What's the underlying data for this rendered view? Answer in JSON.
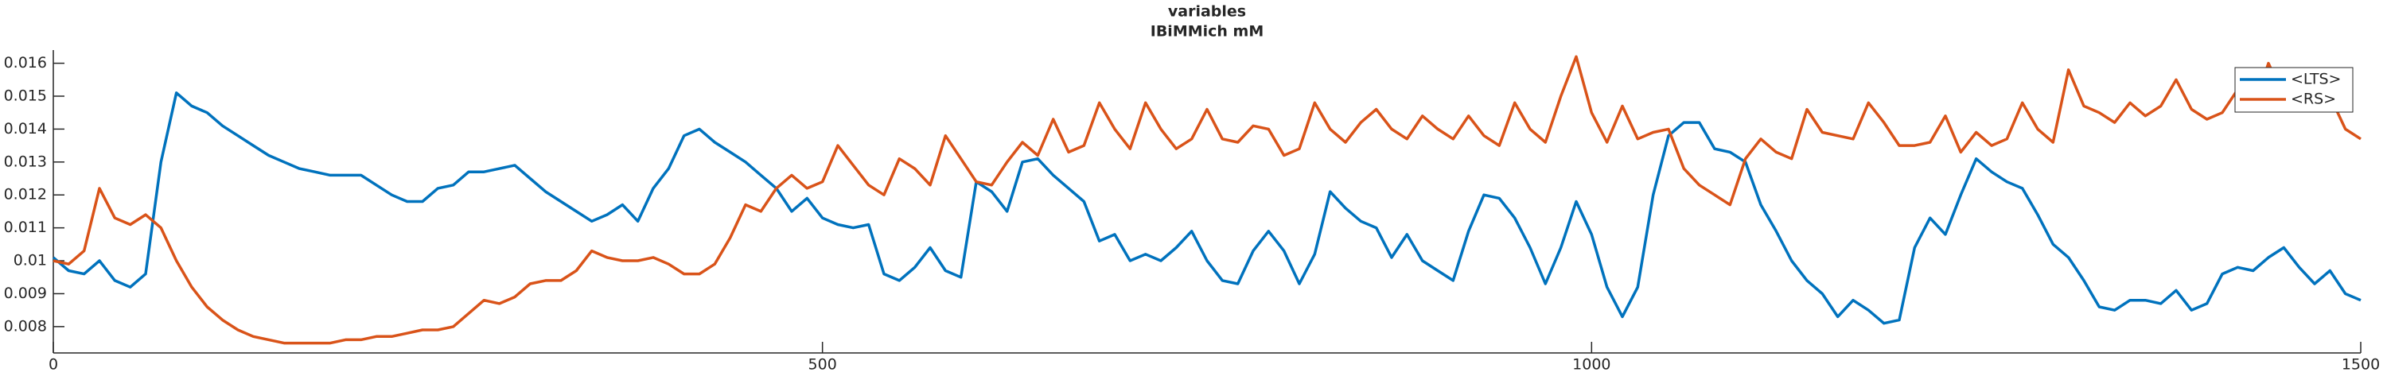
{
  "chart_data": {
    "type": "line",
    "title": [
      "variables",
      "IBiMMich mM"
    ],
    "x": [
      0,
      10,
      20,
      30,
      40,
      50,
      60,
      70,
      80,
      90,
      100,
      110,
      120,
      130,
      140,
      150,
      160,
      170,
      180,
      190,
      200,
      210,
      220,
      230,
      240,
      250,
      260,
      270,
      280,
      290,
      300,
      310,
      320,
      330,
      340,
      350,
      360,
      370,
      380,
      390,
      400,
      410,
      420,
      430,
      440,
      450,
      460,
      470,
      480,
      490,
      500,
      510,
      520,
      530,
      540,
      550,
      560,
      570,
      580,
      590,
      600,
      610,
      620,
      630,
      640,
      650,
      660,
      670,
      680,
      690,
      700,
      710,
      720,
      730,
      740,
      750,
      760,
      770,
      780,
      790,
      800,
      810,
      820,
      830,
      840,
      850,
      860,
      870,
      880,
      890,
      900,
      910,
      920,
      930,
      940,
      950,
      960,
      970,
      980,
      990,
      1000,
      1010,
      1020,
      1030,
      1040,
      1050,
      1060,
      1070,
      1080,
      1090,
      1100,
      1110,
      1120,
      1130,
      1140,
      1150,
      1160,
      1170,
      1180,
      1190,
      1200,
      1210,
      1220,
      1230,
      1240,
      1250,
      1260,
      1270,
      1280,
      1290,
      1300,
      1310,
      1320,
      1330,
      1340,
      1350,
      1360,
      1370,
      1380,
      1390,
      1400,
      1410,
      1420,
      1430,
      1440,
      1450,
      1460,
      1470,
      1480,
      1490,
      1500
    ],
    "series": [
      {
        "name": "<LTS>",
        "color": "#0072bd",
        "values": [
          0.0101,
          0.0097,
          0.0096,
          0.01,
          0.0094,
          0.0092,
          0.0096,
          0.013,
          0.0151,
          0.0147,
          0.0145,
          0.0141,
          0.0138,
          0.0135,
          0.0132,
          0.013,
          0.0128,
          0.0127,
          0.0126,
          0.0126,
          0.0126,
          0.0123,
          0.012,
          0.0118,
          0.0118,
          0.0122,
          0.0123,
          0.0127,
          0.0127,
          0.0128,
          0.0129,
          0.0125,
          0.0121,
          0.0118,
          0.0115,
          0.0112,
          0.0114,
          0.0117,
          0.0112,
          0.0122,
          0.0128,
          0.0138,
          0.014,
          0.0136,
          0.0133,
          0.013,
          0.0126,
          0.0122,
          0.0115,
          0.0119,
          0.0113,
          0.0111,
          0.011,
          0.0111,
          0.0096,
          0.0094,
          0.0098,
          0.0104,
          0.0097,
          0.0095,
          0.0124,
          0.0121,
          0.0115,
          0.013,
          0.0131,
          0.0126,
          0.0122,
          0.0118,
          0.0106,
          0.0108,
          0.01,
          0.0102,
          0.01,
          0.0104,
          0.0109,
          0.01,
          0.0094,
          0.0093,
          0.0103,
          0.0109,
          0.0103,
          0.0093,
          0.0102,
          0.0121,
          0.0116,
          0.0112,
          0.011,
          0.0101,
          0.0108,
          0.01,
          0.0097,
          0.0094,
          0.0109,
          0.012,
          0.0119,
          0.0113,
          0.0104,
          0.0093,
          0.0104,
          0.0118,
          0.0108,
          0.0092,
          0.0083,
          0.0092,
          0.012,
          0.0138,
          0.0142,
          0.0142,
          0.0134,
          0.0133,
          0.013,
          0.0117,
          0.0109,
          0.01,
          0.0094,
          0.009,
          0.0083,
          0.0088,
          0.0085,
          0.0081,
          0.0082,
          0.0104,
          0.0113,
          0.0108,
          0.012,
          0.0131,
          0.0127,
          0.0124,
          0.0122,
          0.0114,
          0.0105,
          0.0101,
          0.0094,
          0.0086,
          0.0085,
          0.0088,
          0.0088,
          0.0087,
          0.0091,
          0.0085,
          0.0087,
          0.0096,
          0.0098,
          0.0097,
          0.0101,
          0.0104,
          0.0098,
          0.0093,
          0.0097,
          0.009,
          0.0088
        ]
      },
      {
        "name": "<RS>",
        "color": "#d95319",
        "values": [
          0.01,
          0.0099,
          0.0103,
          0.0122,
          0.0113,
          0.0111,
          0.0114,
          0.011,
          0.01,
          0.0092,
          0.0086,
          0.0082,
          0.0079,
          0.0077,
          0.0076,
          0.0075,
          0.0075,
          0.0075,
          0.0075,
          0.0076,
          0.0076,
          0.0077,
          0.0077,
          0.0078,
          0.0079,
          0.0079,
          0.008,
          0.0084,
          0.0088,
          0.0087,
          0.0089,
          0.0093,
          0.0094,
          0.0094,
          0.0097,
          0.0103,
          0.0101,
          0.01,
          0.01,
          0.0101,
          0.0099,
          0.0096,
          0.0096,
          0.0099,
          0.0107,
          0.0117,
          0.0115,
          0.0122,
          0.0126,
          0.0122,
          0.0124,
          0.0135,
          0.0129,
          0.0123,
          0.012,
          0.0131,
          0.0128,
          0.0123,
          0.0138,
          0.0131,
          0.0124,
          0.0123,
          0.013,
          0.0136,
          0.0132,
          0.0143,
          0.0133,
          0.0135,
          0.0148,
          0.014,
          0.0134,
          0.0148,
          0.014,
          0.0134,
          0.0137,
          0.0146,
          0.0137,
          0.0136,
          0.0141,
          0.014,
          0.0132,
          0.0134,
          0.0148,
          0.014,
          0.0136,
          0.0142,
          0.0146,
          0.014,
          0.0137,
          0.0144,
          0.014,
          0.0137,
          0.0144,
          0.0138,
          0.0135,
          0.0148,
          0.014,
          0.0136,
          0.015,
          0.0162,
          0.0145,
          0.0136,
          0.0147,
          0.0137,
          0.0139,
          0.014,
          0.0128,
          0.0123,
          0.012,
          0.0117,
          0.0131,
          0.0137,
          0.0133,
          0.0131,
          0.0146,
          0.0139,
          0.0138,
          0.0137,
          0.0148,
          0.0142,
          0.0135,
          0.0135,
          0.0136,
          0.0144,
          0.0133,
          0.0139,
          0.0135,
          0.0137,
          0.0148,
          0.014,
          0.0136,
          0.0158,
          0.0147,
          0.0145,
          0.0142,
          0.0148,
          0.0144,
          0.0147,
          0.0155,
          0.0146,
          0.0143,
          0.0145,
          0.0152,
          0.0146,
          0.016,
          0.015,
          0.0152,
          0.0146,
          0.015,
          0.014,
          0.0137
        ]
      }
    ],
    "xlim": [
      0,
      1500
    ],
    "xticks": [
      0,
      500,
      1000,
      1500
    ],
    "ylim": [
      0.0072,
      0.0164
    ],
    "yticks": [
      0.008,
      0.009,
      0.01,
      0.011,
      0.012,
      0.013,
      0.014,
      0.015,
      0.016
    ],
    "grid": false,
    "legend": "northeast"
  }
}
